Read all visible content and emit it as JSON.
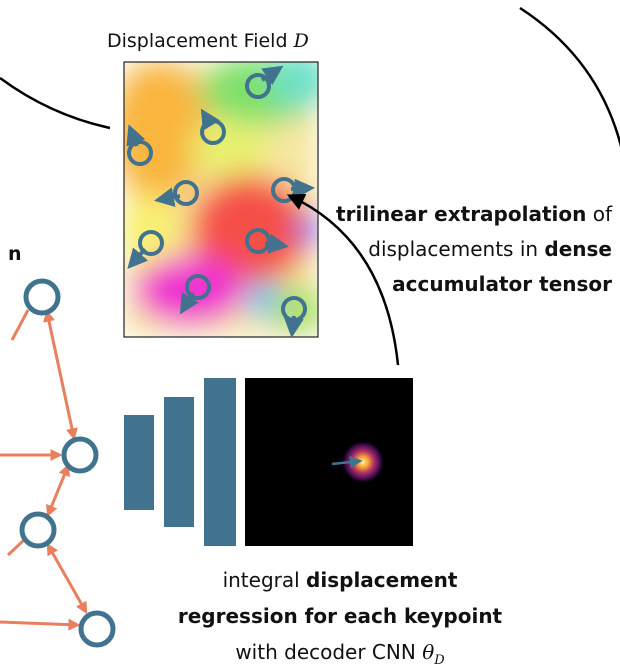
{
  "field_label": {
    "text": "Displacement Field ",
    "symbol": "D"
  },
  "left_fragment": "n",
  "extrapolation_note": [
    [
      {
        "text": "trilinear extrapolation",
        "bold": true
      },
      {
        "text": " of",
        "bold": false
      }
    ],
    [
      {
        "text": "displacements in ",
        "bold": false
      },
      {
        "text": "dense",
        "bold": true
      }
    ],
    [
      {
        "text": "accumulator tensor",
        "bold": true
      }
    ]
  ],
  "regression_note": [
    [
      {
        "text": "integral ",
        "bold": false
      },
      {
        "text": "displacement",
        "bold": true
      }
    ],
    [
      {
        "text": "regression for each keypoint",
        "bold": true
      }
    ],
    [
      {
        "text": "with decoder CNN ",
        "bold": false
      }
    ]
  ],
  "decoder_symbol": {
    "symbol": "θ",
    "subscript": "D"
  }
}
